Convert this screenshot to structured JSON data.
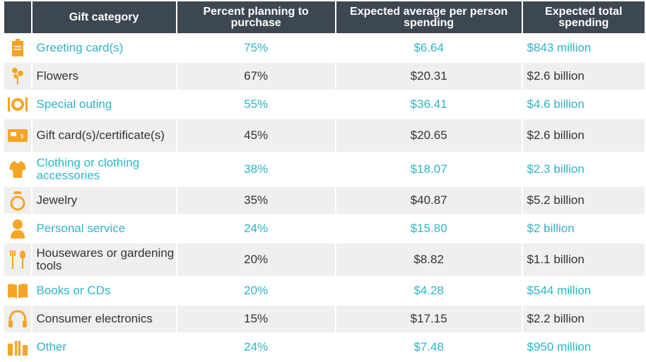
{
  "chart_data": {
    "type": "table",
    "columns": [
      "Gift category",
      "Percent planning to purchase",
      "Expected average per person spending",
      "Expected total spending"
    ],
    "rows": [
      {
        "icon": "greeting-card-icon",
        "category": "Greeting card(s)",
        "percent": "75%",
        "avg": "$6.64",
        "total": "$843 million"
      },
      {
        "icon": "flowers-icon",
        "category": "Flowers",
        "percent": "67%",
        "avg": "$20.31",
        "total": "$2.6 billion"
      },
      {
        "icon": "dining-icon",
        "category": "Special outing",
        "percent": "55%",
        "avg": "$36.41",
        "total": "$4.6 billion"
      },
      {
        "icon": "gift-card-icon",
        "category": "Gift card(s)/certificate(s)",
        "percent": "45%",
        "avg": "$20.65",
        "total": "$2.6 billion"
      },
      {
        "icon": "shirt-icon",
        "category": "Clothing or clothing accessories",
        "percent": "38%",
        "avg": "$18.07",
        "total": "$2.3 billion"
      },
      {
        "icon": "ring-icon",
        "category": "Jewelry",
        "percent": "35%",
        "avg": "$40.87",
        "total": "$5.2 billion"
      },
      {
        "icon": "person-icon",
        "category": "Personal service",
        "percent": "24%",
        "avg": "$15.80",
        "total": "$2 billion"
      },
      {
        "icon": "garden-tools-icon",
        "category": "Housewares or gardening tools",
        "percent": "20%",
        "avg": "$8.82",
        "total": "$1.1 billion"
      },
      {
        "icon": "book-icon",
        "category": "Books or CDs",
        "percent": "20%",
        "avg": "$4.28",
        "total": "$544 million"
      },
      {
        "icon": "headphones-icon",
        "category": "Consumer electronics",
        "percent": "15%",
        "avg": "$17.15",
        "total": "$2.2 billion"
      },
      {
        "icon": "gifts-icon",
        "category": "Other",
        "percent": "24%",
        "avg": "$7.48",
        "total": "$950 million"
      }
    ]
  },
  "colors": {
    "header_bg": "#3d4751",
    "accent": "#2fb5c8",
    "icon": "#f5a524",
    "row_alt": "#efefef",
    "text": "#333333"
  }
}
